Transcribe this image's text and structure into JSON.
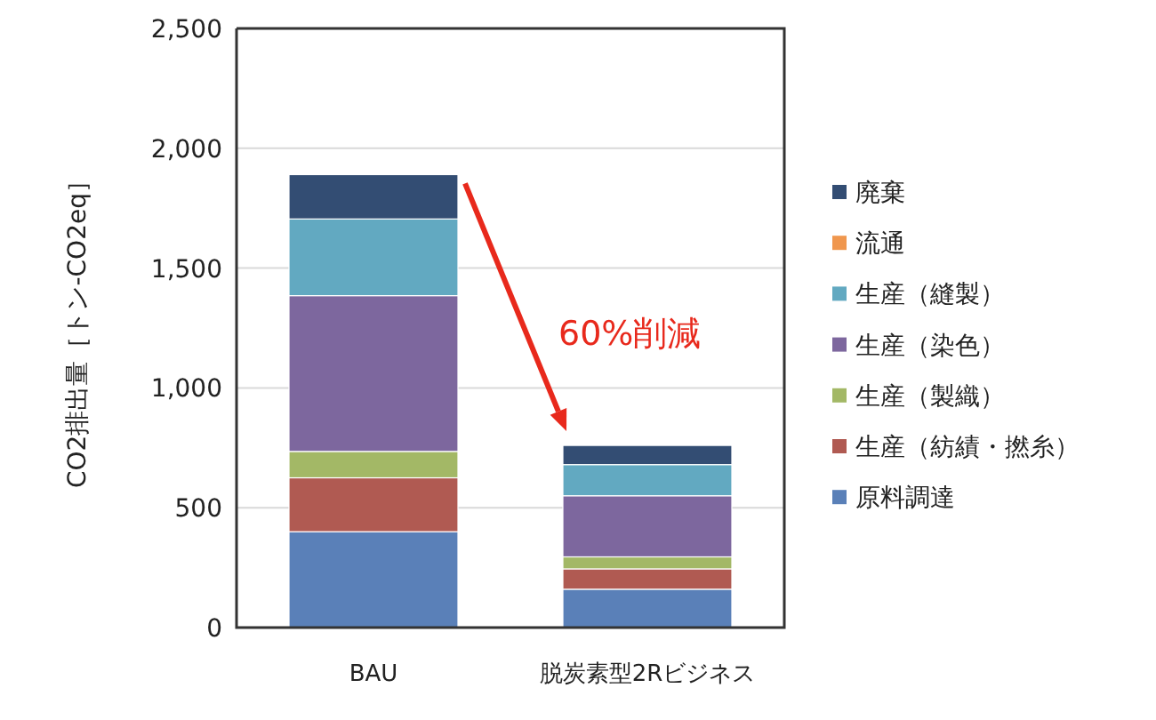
{
  "chart_data": {
    "type": "bar",
    "stacked": true,
    "ylabel": "CO2排出量［トン-CO2eq］",
    "categories": [
      "BAU",
      "脱炭素型2Rビジネス"
    ],
    "ylim": [
      0,
      2500
    ],
    "yticks": [
      {
        "value": 0,
        "label": "0"
      },
      {
        "value": 500,
        "label": "500"
      },
      {
        "value": 1000,
        "label": "1,000"
      },
      {
        "value": 1500,
        "label": "1,500"
      },
      {
        "value": 2000,
        "label": "2,000"
      },
      {
        "value": 2500,
        "label": "2,500"
      }
    ],
    "grid": "y",
    "legend": "right",
    "series": [
      {
        "name": "原料調達",
        "color": "#5a80b8",
        "values": [
          400,
          160
        ]
      },
      {
        "name": "生産（紡績・撚糸）",
        "color": "#b05a52",
        "values": [
          225,
          85
        ]
      },
      {
        "name": "生産（製織）",
        "color": "#a3b866",
        "values": [
          110,
          50
        ]
      },
      {
        "name": "生産（染色）",
        "color": "#7d679e",
        "values": [
          650,
          255
        ]
      },
      {
        "name": "生産（縫製）",
        "color": "#62a9c1",
        "values": [
          320,
          130
        ]
      },
      {
        "name": "流通",
        "color": "#f0974e",
        "values": [
          0,
          0
        ]
      },
      {
        "name": "廃棄",
        "color": "#334d73",
        "values": [
          185,
          80
        ]
      }
    ],
    "annotations": [
      "60%削減"
    ]
  }
}
